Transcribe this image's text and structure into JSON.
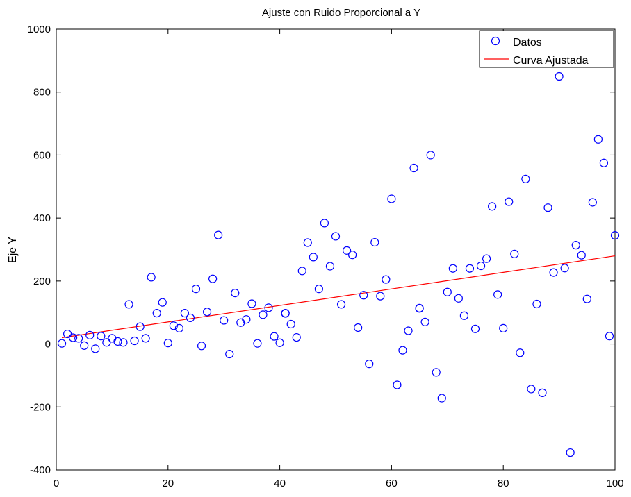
{
  "chart_data": {
    "type": "scatter",
    "title": "Ajuste con Ruido Proporcional a Y",
    "xlabel": "",
    "ylabel": "Eje Y",
    "xlim": [
      0,
      100
    ],
    "ylim": [
      -400,
      1000
    ],
    "xticks": [
      0,
      20,
      40,
      60,
      80,
      100
    ],
    "yticks": [
      -400,
      -200,
      0,
      200,
      400,
      600,
      800,
      1000
    ],
    "xtick_labels": [
      "0",
      "20",
      "40",
      "60",
      "80",
      "100"
    ],
    "ytick_labels": [
      "-400",
      "-200",
      "0",
      "200",
      "400",
      "600",
      "800",
      "1000"
    ],
    "grid": false,
    "legend_position": "top-right",
    "series": [
      {
        "name": "Datos",
        "marker": "circle",
        "color": "#0000ff",
        "points": [
          [
            1,
            2
          ],
          [
            2,
            32
          ],
          [
            3,
            20
          ],
          [
            4,
            18
          ],
          [
            5,
            -5
          ],
          [
            6,
            28
          ],
          [
            7,
            -15
          ],
          [
            8,
            25
          ],
          [
            9,
            5
          ],
          [
            10,
            18
          ],
          [
            11,
            8
          ],
          [
            12,
            5
          ],
          [
            13,
            126
          ],
          [
            14,
            10
          ],
          [
            15,
            55
          ],
          [
            16,
            18
          ],
          [
            17,
            212
          ],
          [
            18,
            98
          ],
          [
            19,
            132
          ],
          [
            20,
            3
          ],
          [
            21,
            58
          ],
          [
            22,
            50
          ],
          [
            23,
            98
          ],
          [
            24,
            83
          ],
          [
            25,
            175
          ],
          [
            26,
            -6
          ],
          [
            27,
            102
          ],
          [
            28,
            207
          ],
          [
            29,
            346
          ],
          [
            30,
            75
          ],
          [
            31,
            -32
          ],
          [
            32,
            162
          ],
          [
            33,
            68
          ],
          [
            34,
            78
          ],
          [
            35,
            128
          ],
          [
            36,
            2
          ],
          [
            37,
            93
          ],
          [
            38,
            115
          ],
          [
            39,
            24
          ],
          [
            40,
            4
          ],
          [
            41,
            98
          ],
          [
            41,
            97
          ],
          [
            42,
            63
          ],
          [
            43,
            21
          ],
          [
            44,
            232
          ],
          [
            45,
            322
          ],
          [
            46,
            276
          ],
          [
            47,
            175
          ],
          [
            48,
            384
          ],
          [
            49,
            247
          ],
          [
            50,
            342
          ],
          [
            51,
            126
          ],
          [
            52,
            297
          ],
          [
            53,
            283
          ],
          [
            54,
            52
          ],
          [
            55,
            155
          ],
          [
            56,
            -63
          ],
          [
            57,
            323
          ],
          [
            58,
            152
          ],
          [
            59,
            205
          ],
          [
            60,
            461
          ],
          [
            61,
            -130
          ],
          [
            62,
            -20
          ],
          [
            63,
            42
          ],
          [
            64,
            559
          ],
          [
            65,
            113
          ],
          [
            65,
            114
          ],
          [
            66,
            70
          ],
          [
            67,
            600
          ],
          [
            68,
            -90
          ],
          [
            69,
            -172
          ],
          [
            70,
            165
          ],
          [
            71,
            240
          ],
          [
            72,
            145
          ],
          [
            73,
            90
          ],
          [
            74,
            240
          ],
          [
            75,
            48
          ],
          [
            76,
            248
          ],
          [
            77,
            271
          ],
          [
            78,
            437
          ],
          [
            79,
            157
          ],
          [
            80,
            50
          ],
          [
            81,
            452
          ],
          [
            82,
            286
          ],
          [
            83,
            -28
          ],
          [
            84,
            524
          ],
          [
            85,
            -143
          ],
          [
            86,
            127
          ],
          [
            87,
            -155
          ],
          [
            88,
            433
          ],
          [
            89,
            227
          ],
          [
            90,
            850
          ],
          [
            91,
            241
          ],
          [
            92,
            -345
          ],
          [
            93,
            314
          ],
          [
            94,
            282
          ],
          [
            95,
            143
          ],
          [
            96,
            450
          ],
          [
            97,
            650
          ],
          [
            98,
            575
          ],
          [
            99,
            25
          ],
          [
            100,
            345
          ]
        ]
      },
      {
        "name": "Curva Ajustada",
        "type": "line",
        "color": "#ff0000",
        "points": [
          [
            1,
            20
          ],
          [
            100,
            280
          ]
        ]
      }
    ]
  }
}
